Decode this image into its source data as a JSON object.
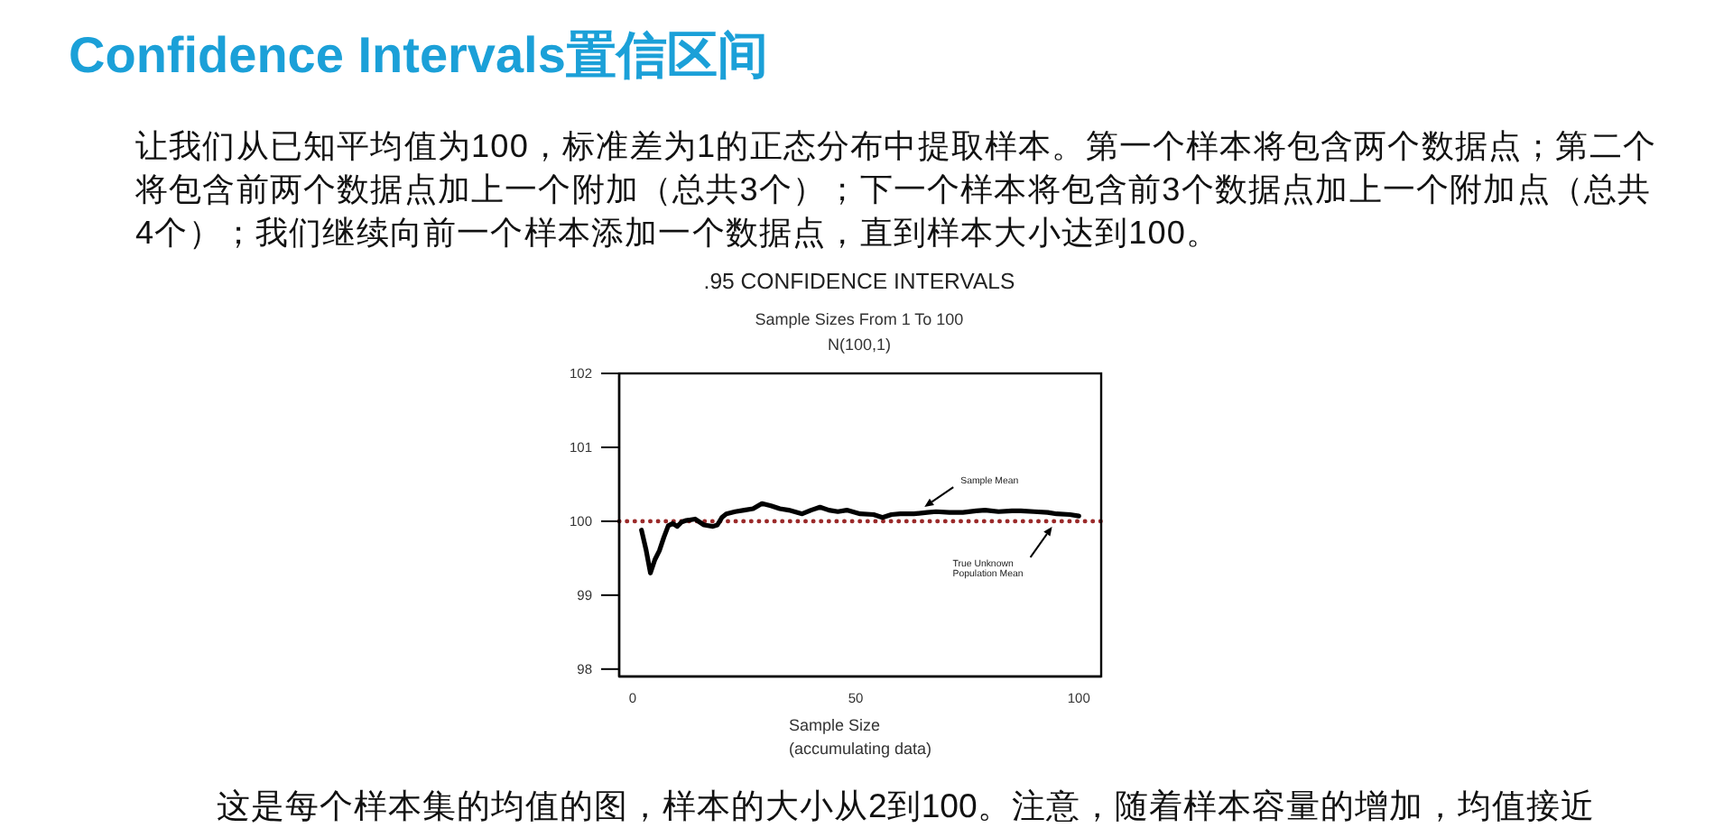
{
  "chart_data": {
    "type": "line",
    "title": ".95 CONFIDENCE INTERVALS",
    "subtitle": "Sample Sizes From 1 To 100\nN(100,1)",
    "xlabel": "Sample Size\n(accumulating data)",
    "annotations": [
      "Confidence Intervals置信区间",
      "让我们从已知平均值为100，标准差为1的正态分布中提取样本。第一个样本将包含两个数据点；第二个将包含前两个数据点加上一个附加（总共3个）；下一个样本将包含前3个数据点加上一个附加点（总共4个）；我们继续向前一个样本添加一个数据点，直到样本大小达到100。",
      "这是每个样本集的均值的图，样本的大小从2到100。注意，随着样本容量的增加，均值接近",
      {
        "text": "Sample Mean",
        "x": 65,
        "y": 100.12
      },
      {
        "text": "True Unknown\nPopulation Mean",
        "x": 94,
        "y": 100
      }
    ],
    "x": [
      2,
      3,
      4,
      5,
      6,
      7,
      8,
      9,
      10,
      11,
      12,
      14,
      15,
      16,
      18,
      19,
      20,
      21,
      23,
      25,
      27,
      29,
      31,
      33,
      35,
      38,
      40,
      42,
      44,
      46,
      48,
      51,
      54,
      56,
      58,
      60,
      63,
      66,
      68,
      71,
      74,
      77,
      79,
      82,
      85,
      87,
      90,
      93,
      95,
      98,
      100
    ],
    "values": [
      99.88,
      99.62,
      99.3,
      99.48,
      99.6,
      99.78,
      99.94,
      99.97,
      99.93,
      99.99,
      100.01,
      100.03,
      99.99,
      99.95,
      99.93,
      99.95,
      100.05,
      100.1,
      100.13,
      100.15,
      100.17,
      100.24,
      100.21,
      100.17,
      100.15,
      100.1,
      100.15,
      100.19,
      100.15,
      100.13,
      100.15,
      100.1,
      100.09,
      100.05,
      100.09,
      100.1,
      100.1,
      100.12,
      100.13,
      100.12,
      100.12,
      100.14,
      100.15,
      100.13,
      100.14,
      100.14,
      100.13,
      100.12,
      100.1,
      100.09,
      100.07
    ],
    "color": "#000000",
    "line_style": "solid",
    "xlim": [
      -3,
      105
    ],
    "ylim": [
      97.9,
      102
    ],
    "xticks": [
      0,
      50,
      100
    ],
    "yticks": [
      98,
      99,
      100,
      101,
      102
    ],
    "ref_lines": [
      {
        "axis": "y",
        "value": 100,
        "color": "#9b2a2a",
        "line_style": "dotted"
      }
    ]
  }
}
